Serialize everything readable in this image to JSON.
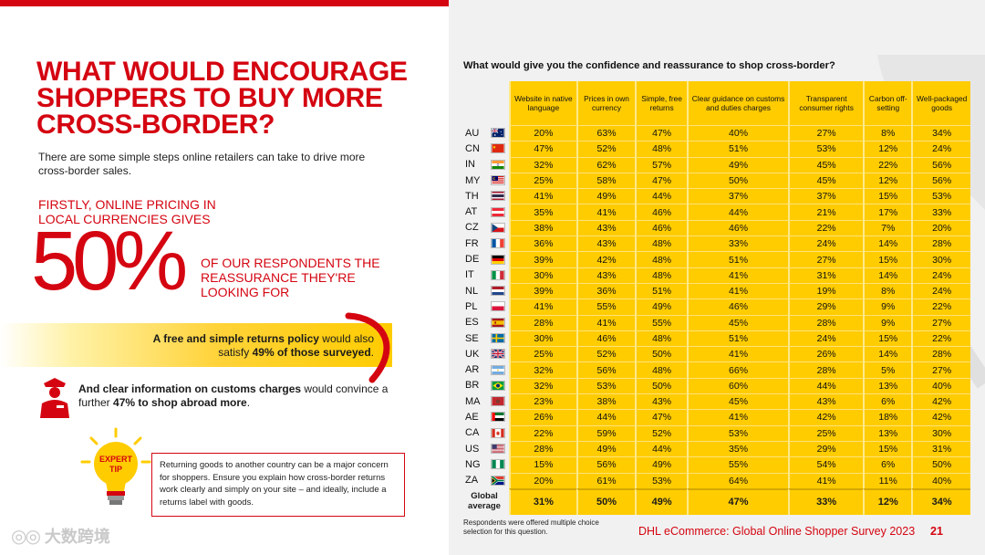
{
  "left": {
    "headline": "WHAT WOULD ENCOURAGE SHOPPERS TO BUY MORE CROSS-BORDER?",
    "intro": "There are some simple steps online retailers can take to drive more cross-border sales.",
    "firstly": "FIRSTLY, ONLINE PRICING IN LOCAL CURRENCIES GIVES",
    "big_number": "50%",
    "respondents": "OF OUR RESPONDENTS THE REASSURANCE THEY'RE LOOKING FOR",
    "returns": {
      "bold": "A free and simple returns policy",
      "mid": " would also satisfy ",
      "bold2": "49% of those surveyed",
      "end": "."
    },
    "customs": {
      "bold": "And clear information on customs charges",
      "mid": " would convince a further ",
      "bold2": "47% to shop abroad more",
      "end": "."
    },
    "tip_label_1": "EXPERT",
    "tip_label_2": "TIP",
    "tip_text": "Returning goods to another country can be a major concern for shoppers. Ensure you explain how cross-border returns work clearly and simply on your site – and ideally, include a returns label with goods.",
    "watermark_text": "大数跨境"
  },
  "right": {
    "title": "What would give you the confidence and reassurance to shop cross-border?",
    "footnote": "Respondents were offered multiple choice selection for this question.",
    "footer": "DHL eCommerce: Global Online Shopper Survey 2023",
    "page_number": "21"
  },
  "colors": {
    "dhl_red": "#d40511",
    "dhl_yellow": "#ffcc00"
  },
  "chart_data": {
    "type": "table",
    "title": "What would give you the confidence and reassurance to shop cross-border?",
    "columns": [
      "Website in native language",
      "Prices in own currency",
      "Simple, free returns",
      "Clear guidance on customs and duties charges",
      "Transparent consumer rights",
      "Carbon off-setting",
      "Well-packaged goods"
    ],
    "rows": [
      {
        "country": "AU",
        "flag": "au",
        "values": [
          "20%",
          "63%",
          "47%",
          "40%",
          "27%",
          "8%",
          "34%"
        ]
      },
      {
        "country": "CN",
        "flag": "cn",
        "values": [
          "47%",
          "52%",
          "48%",
          "51%",
          "53%",
          "12%",
          "24%"
        ]
      },
      {
        "country": "IN",
        "flag": "in",
        "values": [
          "32%",
          "62%",
          "57%",
          "49%",
          "45%",
          "22%",
          "56%"
        ]
      },
      {
        "country": "MY",
        "flag": "my",
        "values": [
          "25%",
          "58%",
          "47%",
          "50%",
          "45%",
          "12%",
          "56%"
        ]
      },
      {
        "country": "TH",
        "flag": "th",
        "values": [
          "41%",
          "49%",
          "44%",
          "37%",
          "37%",
          "15%",
          "53%"
        ]
      },
      {
        "country": "AT",
        "flag": "at",
        "values": [
          "35%",
          "41%",
          "46%",
          "44%",
          "21%",
          "17%",
          "33%"
        ]
      },
      {
        "country": "CZ",
        "flag": "cz",
        "values": [
          "38%",
          "43%",
          "46%",
          "46%",
          "22%",
          "7%",
          "20%"
        ]
      },
      {
        "country": "FR",
        "flag": "fr",
        "values": [
          "36%",
          "43%",
          "48%",
          "33%",
          "24%",
          "14%",
          "28%"
        ]
      },
      {
        "country": "DE",
        "flag": "de",
        "values": [
          "39%",
          "42%",
          "48%",
          "51%",
          "27%",
          "15%",
          "30%"
        ]
      },
      {
        "country": "IT",
        "flag": "it",
        "values": [
          "30%",
          "43%",
          "48%",
          "41%",
          "31%",
          "14%",
          "24%"
        ]
      },
      {
        "country": "NL",
        "flag": "nl",
        "values": [
          "39%",
          "36%",
          "51%",
          "41%",
          "19%",
          "8%",
          "24%"
        ]
      },
      {
        "country": "PL",
        "flag": "pl",
        "values": [
          "41%",
          "55%",
          "49%",
          "46%",
          "29%",
          "9%",
          "22%"
        ]
      },
      {
        "country": "ES",
        "flag": "es",
        "values": [
          "28%",
          "41%",
          "55%",
          "45%",
          "28%",
          "9%",
          "27%"
        ]
      },
      {
        "country": "SE",
        "flag": "se",
        "values": [
          "30%",
          "46%",
          "48%",
          "51%",
          "24%",
          "15%",
          "22%"
        ]
      },
      {
        "country": "UK",
        "flag": "uk",
        "values": [
          "25%",
          "52%",
          "50%",
          "41%",
          "26%",
          "14%",
          "28%"
        ]
      },
      {
        "country": "AR",
        "flag": "ar",
        "values": [
          "32%",
          "56%",
          "48%",
          "66%",
          "28%",
          "5%",
          "27%"
        ]
      },
      {
        "country": "BR",
        "flag": "br",
        "values": [
          "32%",
          "53%",
          "50%",
          "60%",
          "44%",
          "13%",
          "40%"
        ]
      },
      {
        "country": "MA",
        "flag": "ma",
        "values": [
          "23%",
          "38%",
          "43%",
          "45%",
          "43%",
          "6%",
          "42%"
        ]
      },
      {
        "country": "AE",
        "flag": "ae",
        "values": [
          "26%",
          "44%",
          "47%",
          "41%",
          "42%",
          "18%",
          "42%"
        ]
      },
      {
        "country": "CA",
        "flag": "ca",
        "values": [
          "22%",
          "59%",
          "52%",
          "53%",
          "25%",
          "13%",
          "30%"
        ]
      },
      {
        "country": "US",
        "flag": "us",
        "values": [
          "28%",
          "49%",
          "44%",
          "35%",
          "29%",
          "15%",
          "31%"
        ]
      },
      {
        "country": "NG",
        "flag": "ng",
        "values": [
          "15%",
          "56%",
          "49%",
          "55%",
          "54%",
          "6%",
          "50%"
        ]
      },
      {
        "country": "ZA",
        "flag": "za",
        "values": [
          "20%",
          "61%",
          "53%",
          "64%",
          "41%",
          "11%",
          "40%"
        ]
      }
    ],
    "global_average": {
      "label": "Global average",
      "values": [
        "31%",
        "50%",
        "49%",
        "47%",
        "33%",
        "12%",
        "34%"
      ]
    }
  }
}
